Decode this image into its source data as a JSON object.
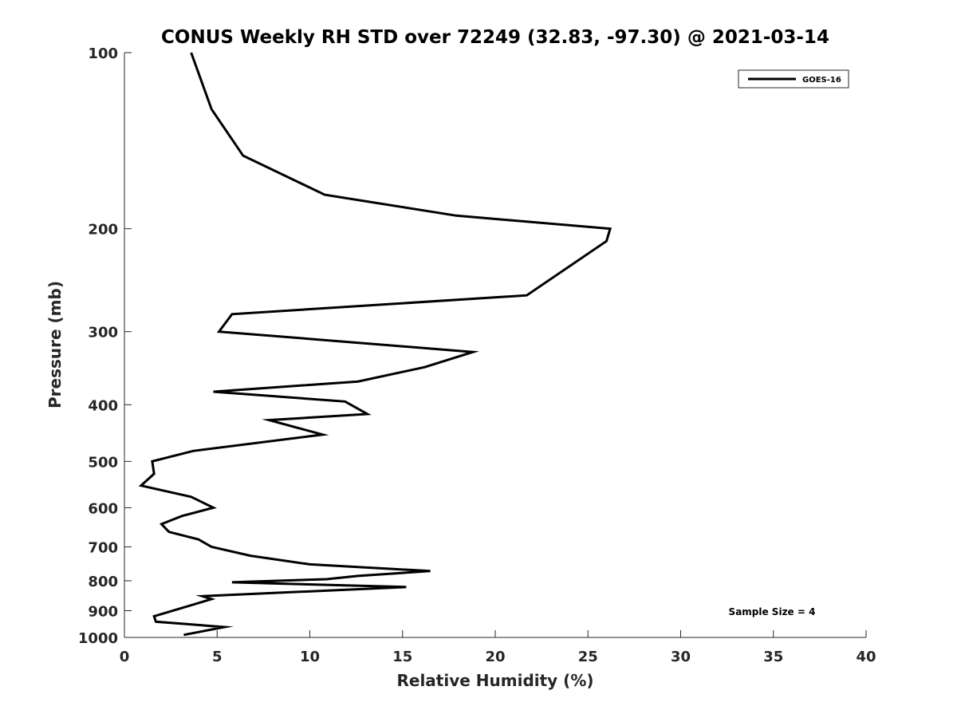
{
  "chart_data": {
    "type": "line",
    "title": "CONUS Weekly RH STD over 72249 (32.83, -97.30) @ 2021-03-14",
    "xlabel": "Relative Humidity (%)",
    "ylabel": "Pressure (mb)",
    "xlim": [
      0,
      40
    ],
    "ylim": [
      100,
      1000
    ],
    "y_scale": "log",
    "y_reversed": true,
    "x_ticks": [
      0,
      5,
      10,
      15,
      20,
      25,
      30,
      35,
      40
    ],
    "y_ticks": [
      100,
      200,
      300,
      400,
      500,
      600,
      700,
      800,
      900,
      1000
    ],
    "grid": false,
    "legend_position": "top-right",
    "annotation": "Sample Size = 4",
    "series": [
      {
        "name": "GOES-16",
        "color": "#000000",
        "points": [
          [
            3.6,
            100
          ],
          [
            4.7,
            125
          ],
          [
            6.4,
            150
          ],
          [
            10.8,
            175
          ],
          [
            17.9,
            190
          ],
          [
            26.2,
            200
          ],
          [
            26.0,
            210
          ],
          [
            21.7,
            260
          ],
          [
            5.8,
            280
          ],
          [
            5.1,
            300
          ],
          [
            18.8,
            325
          ],
          [
            16.2,
            345
          ],
          [
            12.6,
            365
          ],
          [
            4.8,
            380
          ],
          [
            11.9,
            395
          ],
          [
            13.1,
            415
          ],
          [
            7.8,
            425
          ],
          [
            10.7,
            450
          ],
          [
            3.7,
            480
          ],
          [
            1.5,
            500
          ],
          [
            1.6,
            525
          ],
          [
            0.9,
            550
          ],
          [
            3.6,
            575
          ],
          [
            4.8,
            600
          ],
          [
            3.1,
            620
          ],
          [
            2.0,
            640
          ],
          [
            2.4,
            660
          ],
          [
            4.0,
            680
          ],
          [
            4.7,
            700
          ],
          [
            6.8,
            725
          ],
          [
            10.0,
            750
          ],
          [
            16.5,
            770
          ],
          [
            12.6,
            785
          ],
          [
            10.9,
            795
          ],
          [
            5.8,
            805
          ],
          [
            15.2,
            820
          ],
          [
            4.2,
            850
          ],
          [
            4.7,
            860
          ],
          [
            1.6,
            920
          ],
          [
            1.7,
            940
          ],
          [
            5.4,
            960
          ],
          [
            3.2,
            990
          ]
        ]
      }
    ]
  }
}
